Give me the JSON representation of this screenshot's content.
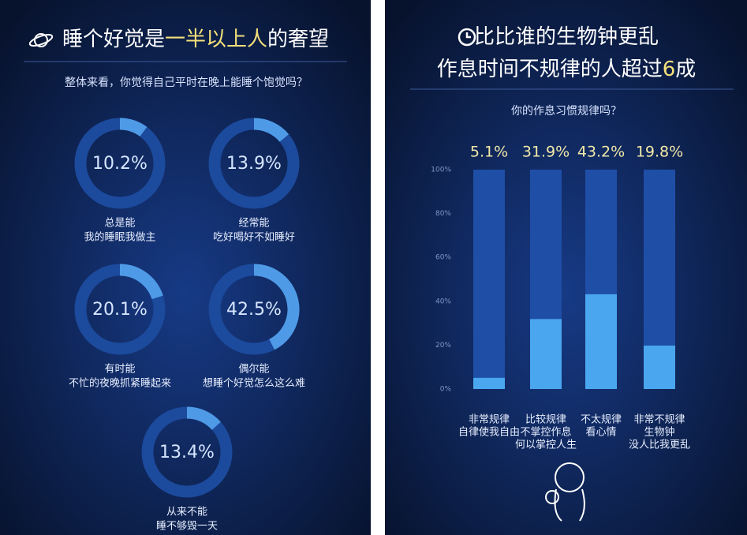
{
  "chart_data": [
    {
      "type": "donut",
      "title": [
        [
          {
            "text": "睡个好觉是",
            "color": "#ffffff"
          },
          {
            "text": "一半以上人",
            "color": "#f3e07a"
          },
          {
            "text": "的奢望",
            "color": "#ffffff"
          }
        ]
      ],
      "subtitle": "整体来看，你觉得自己平时在晚上能睡个饱觉吗？",
      "categories": [
        [
          "总是能",
          "我的睡眠我做主"
        ],
        [
          "经常能",
          "吃好喝好不如睡好"
        ],
        [
          "有时能",
          "不忙的夜晚抓紧睡起来"
        ],
        [
          "偶尔能",
          "想睡个好觉怎么这么难"
        ],
        [
          "从来不能",
          "睡不够毁一天"
        ]
      ],
      "values": [
        10.2,
        13.9,
        20.1,
        42.5,
        13.4
      ],
      "value_labels": [
        "10.2%",
        "13.9%",
        "20.1%",
        "42.5%",
        "13.4%"
      ],
      "color": "#4f9ae6",
      "track_color": "#1c4a9c"
    },
    {
      "type": "bar",
      "title": [
        [
          {
            "text": "比比谁的生物钟更乱",
            "color": "#ffffff"
          }
        ],
        [
          {
            "text": "作息时间",
            "color": "#ffffff"
          },
          {
            "text": "不规律",
            "color": "#ffffff"
          },
          {
            "text": "的人超过",
            "color": "#ffffff"
          },
          {
            "text": "6",
            "color": "#f3e07a"
          },
          {
            "text": "成",
            "color": "#ffffff"
          }
        ]
      ],
      "subtitle": "你的作息习惯规律吗？",
      "categories": [
        [
          "非常规律",
          "自律使我自由"
        ],
        [
          "比较规律",
          "不掌控作息",
          "何以掌控人生"
        ],
        [
          "不太规律",
          "看心情"
        ],
        [
          "非常不规律",
          "生物钟",
          "没人比我更乱"
        ]
      ],
      "values": [
        5.1,
        31.9,
        43.2,
        19.8
      ],
      "value_labels": [
        "5.1%",
        "31.9%",
        "43.2%",
        "19.8%"
      ],
      "color": "#4aa6ee",
      "track_color": "#1f4ea6",
      "ylim": [
        0,
        100
      ],
      "yticks": [
        {
          "value": 0,
          "label": "0%"
        },
        {
          "value": 20,
          "label": "20%"
        },
        {
          "value": 40,
          "label": "40%"
        },
        {
          "value": 60,
          "label": "60%"
        },
        {
          "value": 80,
          "label": "80%"
        },
        {
          "value": 100,
          "label": "100%"
        }
      ]
    }
  ]
}
